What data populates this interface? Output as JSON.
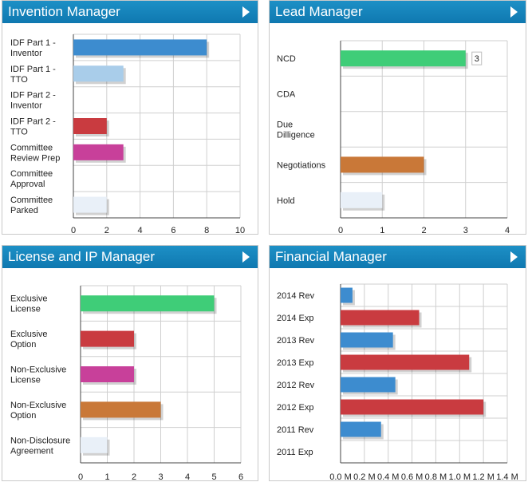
{
  "panels": {
    "invention": {
      "title": "Invention Manager"
    },
    "lead": {
      "title": "Lead Manager"
    },
    "license": {
      "title": "License and IP Manager"
    },
    "financial": {
      "title": "Financial Manager"
    }
  },
  "colors": {
    "blue": "#3d8ccf",
    "lightblue": "#a9cdea",
    "red": "#c93b40",
    "magenta": "#c8409a",
    "green": "#3fcd78",
    "orange": "#c97838",
    "pale": "#e9f0f8",
    "header": "#1684bd"
  },
  "chart_data": [
    {
      "id": "invention",
      "type": "bar",
      "orientation": "horizontal",
      "categories": [
        [
          "IDF Part 1 -",
          "Inventor"
        ],
        [
          "IDF Part 1 -",
          "TTO"
        ],
        [
          "IDF Part 2 -",
          "Inventor"
        ],
        [
          "IDF Part 2 -",
          "TTO"
        ],
        [
          "Committee",
          "Review Prep"
        ],
        [
          "Committee",
          "Approval"
        ],
        [
          "Committee",
          "Parked"
        ]
      ],
      "values": [
        8,
        3,
        0,
        2,
        3,
        0,
        2
      ],
      "bar_colors": [
        "blue",
        "lightblue",
        "blue",
        "red",
        "magenta",
        "blue",
        "pale"
      ],
      "xlim": [
        0,
        10
      ],
      "xticks": [
        "0",
        "2",
        "4",
        "6",
        "8",
        "10"
      ],
      "grid": true
    },
    {
      "id": "lead",
      "type": "bar",
      "orientation": "horizontal",
      "categories": [
        [
          "NCD"
        ],
        [
          "CDA"
        ],
        [
          "Due",
          "Dilligence"
        ],
        [
          "Negotiations"
        ],
        [
          "Hold"
        ]
      ],
      "values": [
        3,
        0,
        0,
        2,
        1
      ],
      "bar_colors": [
        "green",
        "blue",
        "blue",
        "orange",
        "pale"
      ],
      "xlim": [
        0,
        4
      ],
      "xticks": [
        "0",
        "1",
        "2",
        "3",
        "4"
      ],
      "data_labels": [
        {
          "index": 0,
          "text": "3"
        }
      ],
      "grid": true
    },
    {
      "id": "license",
      "type": "bar",
      "orientation": "horizontal",
      "categories": [
        [
          "Exclusive",
          "License"
        ],
        [
          "Exclusive",
          "Option"
        ],
        [
          "Non-Exclusive",
          "License"
        ],
        [
          "Non-Exclusive",
          "Option"
        ],
        [
          "Non-Disclosure",
          "Agreement"
        ]
      ],
      "values": [
        5,
        2,
        2,
        3,
        1
      ],
      "bar_colors": [
        "green",
        "red",
        "magenta",
        "orange",
        "pale"
      ],
      "xlim": [
        0,
        6
      ],
      "xticks": [
        "0",
        "1",
        "2",
        "3",
        "4",
        "5",
        "6"
      ],
      "grid": true
    },
    {
      "id": "financial",
      "type": "bar",
      "orientation": "horizontal",
      "categories": [
        [
          "2014 Rev"
        ],
        [
          "2014 Exp"
        ],
        [
          "2013 Rev"
        ],
        [
          "2013 Exp"
        ],
        [
          "2012 Rev"
        ],
        [
          "2012 Exp"
        ],
        [
          "2011 Rev"
        ],
        [
          "2011 Exp"
        ]
      ],
      "values": [
        0.1,
        0.66,
        0.44,
        1.08,
        0.46,
        1.2,
        0.34,
        0
      ],
      "bar_colors": [
        "blue",
        "red",
        "blue",
        "red",
        "blue",
        "red",
        "blue",
        "red"
      ],
      "xlim": [
        0,
        1.4
      ],
      "xunit": "M",
      "xticks": [
        "0.0 M",
        "0.2 M",
        "0.4 M",
        "0.6 M",
        "0.8 M",
        "1.0 M",
        "1.2 M",
        "1.4 M"
      ],
      "grid": true
    }
  ]
}
